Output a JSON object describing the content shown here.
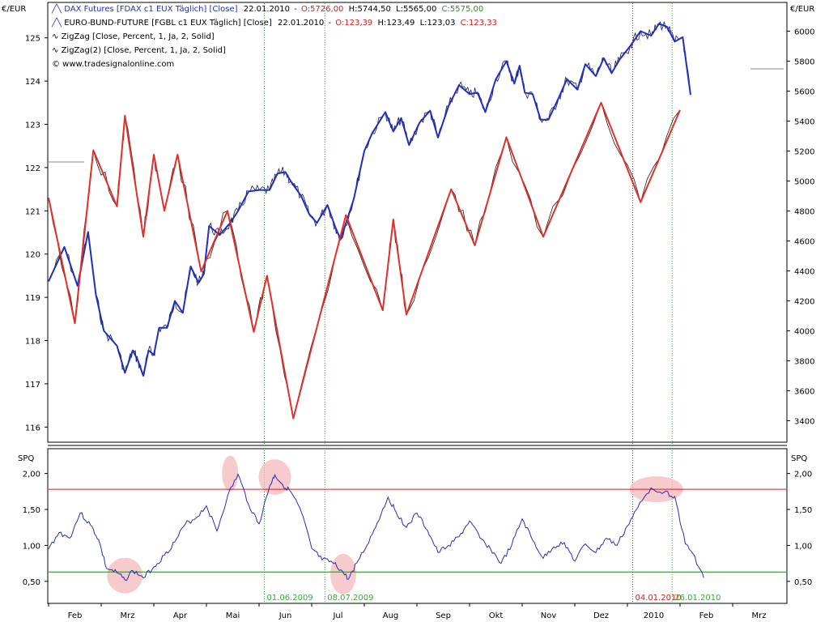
{
  "legend": {
    "dax": {
      "name": "DAX Futures [FDAX c1 EUX  Täglich] [Close]",
      "date": "22.01.2010",
      "o": "O:5726,00",
      "h": "H:5744,50",
      "l": "L:5565,00",
      "c": "C:5575,00"
    },
    "bund": {
      "name": "EURO-BUND-FUTURE [FGBL c1 EUX  Täglich] [Close]",
      "date": "22.01.2010",
      "o": "O:123,39",
      "h": "H:123,49",
      "l": "L:123,03",
      "c": "C:123,33"
    },
    "zz1": "ZigZag [Close, Percent, 1, Ja, 2, Solid]",
    "zz2": "ZigZag(2) [Close, Percent, 1, Ja, 2, Solid]",
    "copyright": "© www.tradesignalonline.com"
  },
  "colors": {
    "dax": "#1f2fbf",
    "bund_zigzag": "#e0302a",
    "spq_line": "#2b2bb5",
    "upper_band": "#d02020",
    "lower_band": "#1a8a1a",
    "vline_green": "#3aa83a",
    "vline_red": "#d02020",
    "highlight": "#f4b8bc"
  },
  "chart_data": [
    {
      "type": "line",
      "title": "",
      "ylabel_left": "€/EUR",
      "ylabel_right": "€/EUR",
      "left_axis": {
        "min": 115.8,
        "max": 125.5,
        "ticks": [
          116,
          117,
          118,
          119,
          120,
          121,
          122,
          123,
          124,
          125
        ],
        "tick_labels": [
          "116",
          "117",
          "118",
          "119",
          "120",
          "121",
          "122",
          "123",
          "124",
          "125"
        ]
      },
      "right_axis": {
        "min": 3300,
        "max": 6100,
        "ticks": [
          3400,
          3600,
          3800,
          4000,
          4200,
          4400,
          4600,
          4800,
          5000,
          5200,
          5400,
          5600,
          5800,
          6000
        ],
        "tick_labels": [
          "3400",
          "3600",
          "3800",
          "4000",
          "4200",
          "4400",
          "4600",
          "4800",
          "5000",
          "5200",
          "5400",
          "5600",
          "5800",
          "6000"
        ]
      },
      "x_axis": {
        "unit": "month index (0 = 1 Jan 2009)",
        "min": 1.0,
        "max": 15.0
      },
      "month_labels": [
        {
          "x": 1.5,
          "label": "Feb"
        },
        {
          "x": 2.5,
          "label": "Mrz"
        },
        {
          "x": 3.5,
          "label": "Apr"
        },
        {
          "x": 4.5,
          "label": "Mai"
        },
        {
          "x": 5.5,
          "label": "Jun"
        },
        {
          "x": 6.5,
          "label": "Jul"
        },
        {
          "x": 7.5,
          "label": "Aug"
        },
        {
          "x": 8.5,
          "label": "Sep"
        },
        {
          "x": 9.5,
          "label": "Okt"
        },
        {
          "x": 10.5,
          "label": "Nov"
        },
        {
          "x": 11.5,
          "label": "Dez"
        },
        {
          "x": 12.5,
          "label": "2010"
        },
        {
          "x": 13.5,
          "label": "Feb"
        },
        {
          "x": 14.5,
          "label": "Mrz"
        }
      ],
      "series": [
        {
          "name": "DAX Futures [FDAX c1 EUX  Täglich] [Close]",
          "axis": "right",
          "style": "zigzag-blue",
          "points": [
            [
              1.0,
              4330
            ],
            [
              1.3,
              4560
            ],
            [
              1.55,
              4300
            ],
            [
              1.75,
              4660
            ],
            [
              1.9,
              4240
            ],
            [
              2.05,
              4000
            ],
            [
              2.3,
              3900
            ],
            [
              2.45,
              3720
            ],
            [
              2.6,
              3870
            ],
            [
              2.7,
              3800
            ],
            [
              2.8,
              3700
            ],
            [
              2.9,
              3870
            ],
            [
              3.0,
              3840
            ],
            [
              3.1,
              4020
            ],
            [
              3.25,
              4020
            ],
            [
              3.4,
              4200
            ],
            [
              3.55,
              4120
            ],
            [
              3.7,
              4430
            ],
            [
              3.85,
              4320
            ],
            [
              3.95,
              4380
            ],
            [
              4.05,
              4700
            ],
            [
              4.25,
              4640
            ],
            [
              4.45,
              4720
            ],
            [
              4.6,
              4800
            ],
            [
              4.8,
              4930
            ],
            [
              5.0,
              4940
            ],
            [
              5.2,
              4940
            ],
            [
              5.35,
              5050
            ],
            [
              5.5,
              5060
            ],
            [
              5.6,
              5000
            ],
            [
              5.8,
              4900
            ],
            [
              5.95,
              4780
            ],
            [
              6.1,
              4720
            ],
            [
              6.3,
              4840
            ],
            [
              6.45,
              4690
            ],
            [
              6.55,
              4610
            ],
            [
              6.8,
              4880
            ],
            [
              7.0,
              5200
            ],
            [
              7.15,
              5320
            ],
            [
              7.4,
              5460
            ],
            [
              7.55,
              5330
            ],
            [
              7.7,
              5420
            ],
            [
              7.85,
              5240
            ],
            [
              8.05,
              5390
            ],
            [
              8.25,
              5470
            ],
            [
              8.4,
              5290
            ],
            [
              8.6,
              5500
            ],
            [
              8.8,
              5640
            ],
            [
              9.0,
              5580
            ],
            [
              9.15,
              5590
            ],
            [
              9.3,
              5460
            ],
            [
              9.5,
              5680
            ],
            [
              9.7,
              5800
            ],
            [
              9.85,
              5650
            ],
            [
              9.95,
              5770
            ],
            [
              10.05,
              5590
            ],
            [
              10.2,
              5580
            ],
            [
              10.35,
              5410
            ],
            [
              10.5,
              5410
            ],
            [
              10.7,
              5560
            ],
            [
              10.85,
              5680
            ],
            [
              11.05,
              5610
            ],
            [
              11.2,
              5780
            ],
            [
              11.4,
              5700
            ],
            [
              11.55,
              5820
            ],
            [
              11.7,
              5720
            ],
            [
              11.85,
              5810
            ],
            [
              12.05,
              5900
            ],
            [
              12.25,
              6000
            ],
            [
              12.45,
              5970
            ],
            [
              12.6,
              6050
            ],
            [
              12.75,
              6030
            ],
            [
              12.9,
              5930
            ],
            [
              13.05,
              5960
            ],
            [
              13.2,
              5575
            ]
          ]
        },
        {
          "name": "EURO-BUND-FUTURE [FGBL c1 EUX  Täglich] [Close]",
          "axis": "left",
          "style": "zigzag-red",
          "points": [
            [
              1.0,
              121.3
            ],
            [
              1.5,
              118.4
            ],
            [
              1.85,
              122.4
            ],
            [
              2.3,
              121.1
            ],
            [
              2.45,
              123.2
            ],
            [
              2.8,
              120.4
            ],
            [
              3.0,
              122.3
            ],
            [
              3.2,
              121.0
            ],
            [
              3.45,
              122.3
            ],
            [
              3.9,
              119.6
            ],
            [
              4.4,
              121.0
            ],
            [
              4.9,
              118.2
            ],
            [
              5.15,
              119.5
            ],
            [
              5.65,
              116.2
            ],
            [
              6.65,
              120.9
            ],
            [
              7.35,
              118.7
            ],
            [
              7.55,
              120.8
            ],
            [
              7.8,
              118.6
            ],
            [
              8.65,
              121.5
            ],
            [
              9.1,
              120.2
            ],
            [
              9.7,
              122.7
            ],
            [
              10.4,
              120.4
            ],
            [
              11.5,
              123.5
            ],
            [
              12.25,
              121.2
            ],
            [
              13.0,
              123.33
            ]
          ]
        }
      ]
    },
    {
      "type": "line",
      "title": "",
      "ylabel_left": "SPQ",
      "ylabel_right": "SPQ",
      "y_axis": {
        "min": 0.25,
        "max": 2.3,
        "ticks": [
          0.5,
          1.0,
          1.5,
          2.0
        ],
        "tick_labels": [
          "0,50",
          "1,00",
          "1,50",
          "2,00"
        ]
      },
      "x_axis": {
        "unit": "month index (0 = 1 Jan 2009)",
        "min": 1.0,
        "max": 15.0
      },
      "upper_band": 1.78,
      "lower_band": 0.63,
      "series": [
        {
          "name": "SPQ",
          "points": [
            [
              1.0,
              0.95
            ],
            [
              1.2,
              1.18
            ],
            [
              1.4,
              1.1
            ],
            [
              1.6,
              1.45
            ],
            [
              1.8,
              1.28
            ],
            [
              1.95,
              1.08
            ],
            [
              2.1,
              0.68
            ],
            [
              2.3,
              0.62
            ],
            [
              2.45,
              0.52
            ],
            [
              2.6,
              0.65
            ],
            [
              2.8,
              0.55
            ],
            [
              3.0,
              0.7
            ],
            [
              3.2,
              0.86
            ],
            [
              3.4,
              1.05
            ],
            [
              3.6,
              1.3
            ],
            [
              3.8,
              1.38
            ],
            [
              4.0,
              1.55
            ],
            [
              4.2,
              1.2
            ],
            [
              4.4,
              1.68
            ],
            [
              4.6,
              1.99
            ],
            [
              4.8,
              1.57
            ],
            [
              5.0,
              1.3
            ],
            [
              5.2,
              1.82
            ],
            [
              5.3,
              1.98
            ],
            [
              5.45,
              1.84
            ],
            [
              5.6,
              1.75
            ],
            [
              5.8,
              1.47
            ],
            [
              6.0,
              0.96
            ],
            [
              6.2,
              0.8
            ],
            [
              6.4,
              0.76
            ],
            [
              6.55,
              0.66
            ],
            [
              6.7,
              0.53
            ],
            [
              6.85,
              0.75
            ],
            [
              7.05,
              1.0
            ],
            [
              7.25,
              1.32
            ],
            [
              7.45,
              1.67
            ],
            [
              7.6,
              1.47
            ],
            [
              7.8,
              1.25
            ],
            [
              8.0,
              1.45
            ],
            [
              8.2,
              1.21
            ],
            [
              8.4,
              0.9
            ],
            [
              8.6,
              1.0
            ],
            [
              8.8,
              1.12
            ],
            [
              9.0,
              1.34
            ],
            [
              9.2,
              1.1
            ],
            [
              9.4,
              0.95
            ],
            [
              9.6,
              0.75
            ],
            [
              9.8,
              1.0
            ],
            [
              10.0,
              1.37
            ],
            [
              10.2,
              1.07
            ],
            [
              10.4,
              0.82
            ],
            [
              10.6,
              0.98
            ],
            [
              10.8,
              1.04
            ],
            [
              11.0,
              0.78
            ],
            [
              11.2,
              1.02
            ],
            [
              11.4,
              0.9
            ],
            [
              11.6,
              1.1
            ],
            [
              11.8,
              1.0
            ],
            [
              12.0,
              1.27
            ],
            [
              12.2,
              1.53
            ],
            [
              12.45,
              1.8
            ],
            [
              12.7,
              1.74
            ],
            [
              12.9,
              1.68
            ],
            [
              13.1,
              1.02
            ],
            [
              13.25,
              0.88
            ],
            [
              13.45,
              0.55
            ]
          ]
        }
      ]
    }
  ],
  "annotations": {
    "vlines": [
      {
        "x": 5.1,
        "label": "01.06.2009",
        "color": "green"
      },
      {
        "x": 6.25,
        "label": "08.07.2009",
        "color": "green"
      },
      {
        "x": 12.1,
        "label": "04.01.2010",
        "color": "red"
      },
      {
        "x": 12.85,
        "label": "26.01.2010",
        "color": "green"
      }
    ],
    "highlight_ellipses": [
      {
        "x": 2.45,
        "y": 0.58
      },
      {
        "x": 4.45,
        "y": 2.0
      },
      {
        "x": 5.3,
        "y": 1.95
      },
      {
        "x": 6.6,
        "y": 0.6
      },
      {
        "x": 12.55,
        "y": 1.78
      }
    ]
  }
}
